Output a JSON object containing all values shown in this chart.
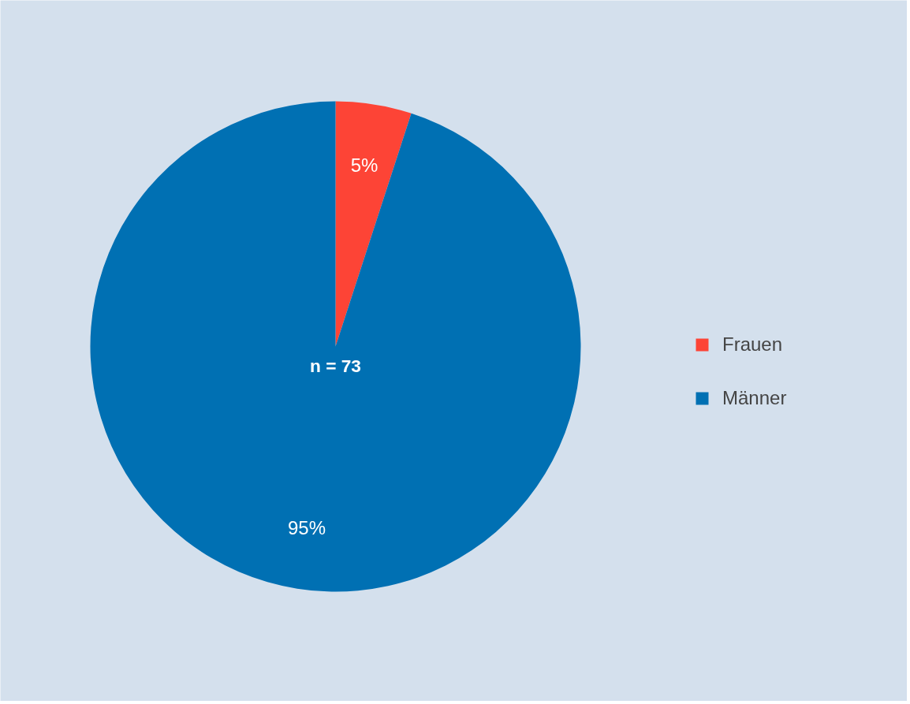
{
  "chart_data": {
    "type": "pie",
    "categories": [
      "Frauen",
      "Männer"
    ],
    "values": [
      5,
      95
    ],
    "colors": [
      "#fd4436",
      "#0070b3"
    ],
    "value_labels": [
      "5%",
      "95%"
    ],
    "annotations": [
      "n = 73"
    ],
    "legend": "right"
  }
}
